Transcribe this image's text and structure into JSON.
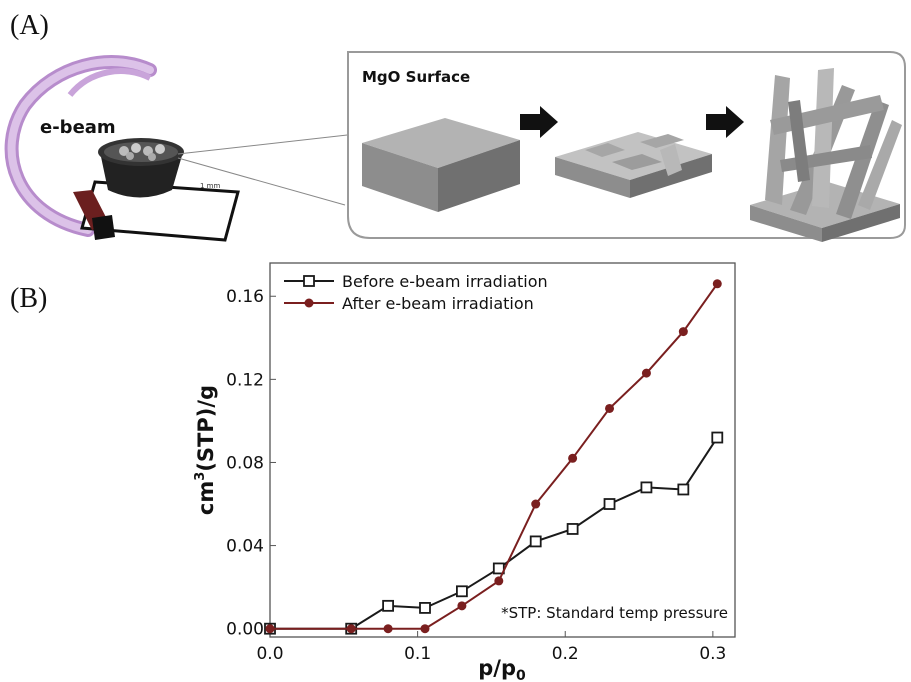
{
  "panel_a": {
    "label": "(A)",
    "ebeam_label": "e-beam",
    "scale_text": "1 mm",
    "surface_title": "MgO Surface"
  },
  "panel_b": {
    "label": "(B)",
    "note": "*STP: Standard temp pressure"
  },
  "colors": {
    "before_series": "#1a1a1a",
    "after_series": "#7a1f1f",
    "ebeam_arc": "#c7a3d8",
    "block": "#9e9e9e"
  },
  "chart_data": {
    "type": "line",
    "xlabel_main": "p/p",
    "xlabel_sub": "0",
    "ylabel_main": "cm",
    "ylabel_sup": "3",
    "ylabel_rest": "(STP)/g",
    "xlim": [
      0.0,
      0.315
    ],
    "ylim": [
      -0.004,
      0.176
    ],
    "xticks": [
      0.0,
      0.1,
      0.2,
      0.3
    ],
    "xtick_labels": [
      "0.0",
      "0.1",
      "0.2",
      "0.3"
    ],
    "yticks": [
      0.0,
      0.04,
      0.08,
      0.12,
      0.16
    ],
    "ytick_labels": [
      "0.00",
      "0.04",
      "0.08",
      "0.12",
      "0.16"
    ],
    "legend_position": "top-left",
    "series": [
      {
        "name": "Before e-beam irradiation",
        "marker": "open-square",
        "x": [
          0.0,
          0.055,
          0.08,
          0.105,
          0.13,
          0.155,
          0.18,
          0.205,
          0.23,
          0.255,
          0.28,
          0.303
        ],
        "y": [
          0.0,
          0.0,
          0.011,
          0.01,
          0.018,
          0.029,
          0.042,
          0.048,
          0.06,
          0.068,
          0.067,
          0.092
        ]
      },
      {
        "name": "After e-beam irradiation",
        "marker": "filled-circle",
        "x": [
          0.0,
          0.055,
          0.08,
          0.105,
          0.13,
          0.155,
          0.18,
          0.205,
          0.23,
          0.255,
          0.28,
          0.303
        ],
        "y": [
          0.0,
          0.0,
          0.0,
          0.0,
          0.011,
          0.023,
          0.06,
          0.082,
          0.106,
          0.123,
          0.143,
          0.166
        ]
      }
    ]
  }
}
